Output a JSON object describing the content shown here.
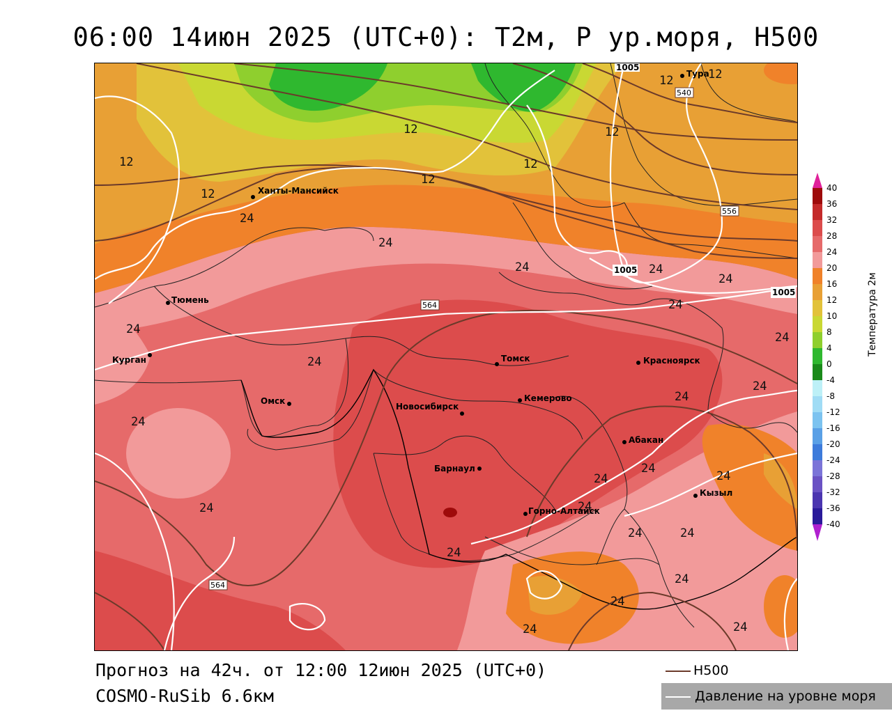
{
  "title": "06:00 14июн 2025 (UTC+0): T2м, P ур.моря, H500",
  "forecast_info": "Прогноз на 42ч. от 12:00 12июн 2025 (UTC+0)",
  "model": "COSMO-RuSib 6.6км",
  "legend": {
    "h500": "H500",
    "pressure": "Давление на уровне моря",
    "h500_color": "#6b3a2a",
    "pressure_color": "#ffffff"
  },
  "colorbar": {
    "title": "Температура 2м",
    "labels": [
      "40",
      "36",
      "32",
      "28",
      "24",
      "20",
      "16",
      "12",
      "10",
      "8",
      "4",
      "0",
      "-4",
      "-8",
      "-12",
      "-16",
      "-20",
      "-24",
      "-28",
      "-32",
      "-36",
      "-40"
    ],
    "colors": [
      "#e0219a",
      "#9e0b0b",
      "#c42a2a",
      "#dc4c4c",
      "#e66a6a",
      "#f29a9a",
      "#f0822a",
      "#e8a035",
      "#e2c23a",
      "#c9d833",
      "#8fcf2e",
      "#2fb82f",
      "#1a8a1a",
      "#bdf0f7",
      "#a0dcf5",
      "#7cc3f0",
      "#5aa0e6",
      "#3d7bdb",
      "#7b74d8",
      "#6a52c4",
      "#4b35b0",
      "#2a1a9a",
      "#b020d0"
    ]
  },
  "cities": [
    {
      "name": "Ханты-Мансийск"
    },
    {
      "name": "Тюмень"
    },
    {
      "name": "Курган"
    },
    {
      "name": "Омск"
    },
    {
      "name": "Томск"
    },
    {
      "name": "Новосибирск"
    },
    {
      "name": "Кемерово"
    },
    {
      "name": "Красноярск"
    },
    {
      "name": "Абакан"
    },
    {
      "name": "Барнаул"
    },
    {
      "name": "Горно-Алтайск"
    },
    {
      "name": "Тура"
    },
    {
      "name": "Кызыл"
    }
  ],
  "temperature_labels": [
    "12",
    "24"
  ],
  "h500_labels": [
    "540",
    "556",
    "564"
  ],
  "pressure_labels": [
    "1005"
  ],
  "map_colors": {
    "hot": "#dc4c4c",
    "warm": "#e66a6a",
    "mild": "#f29a9a",
    "orange": "#f0822a",
    "amber": "#e8a035",
    "yellow": "#e2c23a",
    "lime": "#c9d833",
    "green": "#8fcf2e",
    "dark_green": "#2fb82f",
    "darkest": "#9e0b0b"
  }
}
